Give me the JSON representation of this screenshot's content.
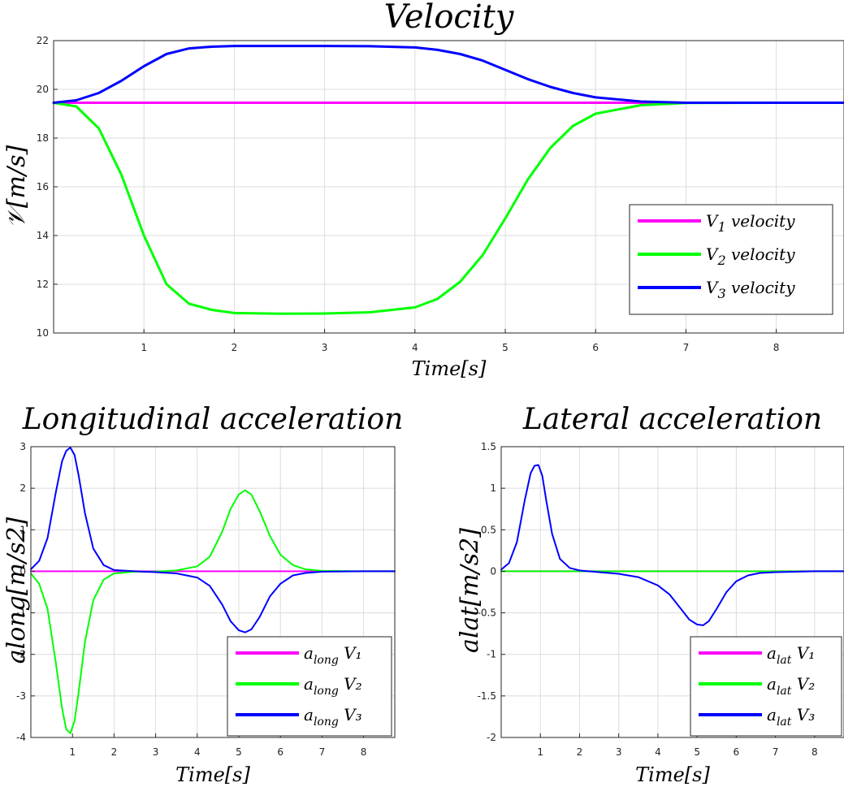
{
  "chart_data": [
    {
      "type": "line",
      "title": "Velocity",
      "xlabel": "Time[s]",
      "ylabel": "𝒱[m/s]",
      "xlim": [
        0,
        8.75
      ],
      "ylim": [
        10,
        22
      ],
      "xticks": [
        1,
        2,
        3,
        4,
        5,
        6,
        7,
        8
      ],
      "yticks": [
        10,
        12,
        14,
        16,
        18,
        20,
        22
      ],
      "grid": true,
      "legend_position": "center-right",
      "series": [
        {
          "name": "V1 velocity",
          "legend_main": "V",
          "legend_sub": "1",
          "legend_rest": " velocity",
          "color": "#ff00ff",
          "x": [
            0,
            1,
            2,
            3,
            4,
            5,
            6,
            7,
            8,
            8.75
          ],
          "y": [
            19.45,
            19.45,
            19.45,
            19.45,
            19.45,
            19.45,
            19.45,
            19.45,
            19.45,
            19.45
          ]
        },
        {
          "name": "V2 velocity",
          "legend_main": "V",
          "legend_sub": "2",
          "legend_rest": " velocity",
          "color": "#00ff00",
          "x": [
            0,
            0.25,
            0.5,
            0.75,
            1.0,
            1.25,
            1.5,
            1.75,
            2.0,
            2.5,
            3.0,
            3.5,
            4.0,
            4.25,
            4.5,
            4.75,
            5.0,
            5.25,
            5.5,
            5.75,
            6.0,
            6.5,
            7.0,
            8.0,
            8.75
          ],
          "y": [
            19.45,
            19.3,
            18.4,
            16.5,
            14.0,
            12.0,
            11.2,
            10.95,
            10.82,
            10.79,
            10.8,
            10.85,
            11.05,
            11.4,
            12.1,
            13.2,
            14.7,
            16.3,
            17.6,
            18.5,
            19.0,
            19.35,
            19.44,
            19.45,
            19.45
          ]
        },
        {
          "name": "V3 velocity",
          "legend_main": "V",
          "legend_sub": "3",
          "legend_rest": " velocity",
          "color": "#0000ff",
          "x": [
            0,
            0.25,
            0.5,
            0.75,
            1.0,
            1.25,
            1.5,
            1.75,
            2.0,
            2.5,
            3.0,
            3.5,
            4.0,
            4.25,
            4.5,
            4.75,
            5.0,
            5.25,
            5.5,
            5.75,
            6.0,
            6.5,
            7.0,
            8.0,
            8.75
          ],
          "y": [
            19.45,
            19.55,
            19.85,
            20.35,
            20.95,
            21.45,
            21.68,
            21.75,
            21.78,
            21.78,
            21.78,
            21.77,
            21.72,
            21.62,
            21.45,
            21.18,
            20.8,
            20.42,
            20.1,
            19.85,
            19.67,
            19.5,
            19.45,
            19.45,
            19.45
          ]
        }
      ]
    },
    {
      "type": "line",
      "title": "Longitudinal acceleration",
      "xlabel": "Time[s]",
      "ylabel": "along[m/s2]",
      "xlim": [
        0,
        8.75
      ],
      "ylim": [
        -4,
        3
      ],
      "xticks": [
        1,
        2,
        3,
        4,
        5,
        6,
        7,
        8
      ],
      "yticks": [
        -4,
        -3,
        -2,
        -1,
        0,
        1,
        2,
        3
      ],
      "grid": true,
      "legend_position": "bottom-right",
      "series": [
        {
          "name": "along V1",
          "legend_main": "a",
          "legend_sub": "long",
          "legend_rest": " V₁",
          "color": "#ff00ff",
          "x": [
            0,
            2,
            4,
            6,
            8.75
          ],
          "y": [
            0,
            0,
            0,
            0,
            0
          ]
        },
        {
          "name": "along V2",
          "legend_main": "a",
          "legend_sub": "long",
          "legend_rest": " V₂",
          "color": "#00ff00",
          "x": [
            0,
            0.2,
            0.4,
            0.6,
            0.75,
            0.85,
            0.95,
            1.05,
            1.15,
            1.3,
            1.5,
            1.75,
            2.0,
            2.5,
            3.0,
            3.5,
            4.0,
            4.3,
            4.6,
            4.8,
            5.0,
            5.15,
            5.3,
            5.5,
            5.75,
            6.0,
            6.3,
            6.6,
            7.0,
            8.0,
            8.75
          ],
          "y": [
            -0.05,
            -0.3,
            -0.9,
            -2.2,
            -3.3,
            -3.8,
            -3.9,
            -3.6,
            -2.9,
            -1.7,
            -0.7,
            -0.2,
            -0.05,
            -0.01,
            -0.01,
            0.02,
            0.12,
            0.35,
            0.95,
            1.5,
            1.85,
            1.95,
            1.85,
            1.45,
            0.85,
            0.4,
            0.15,
            0.05,
            0.01,
            0,
            0
          ]
        },
        {
          "name": "along V3",
          "legend_main": "a",
          "legend_sub": "long",
          "legend_rest": " V₃",
          "color": "#0000ff",
          "x": [
            0,
            0.2,
            0.4,
            0.6,
            0.75,
            0.85,
            0.95,
            1.05,
            1.15,
            1.3,
            1.5,
            1.75,
            2.0,
            2.5,
            3.0,
            3.5,
            4.0,
            4.3,
            4.6,
            4.8,
            5.0,
            5.15,
            5.3,
            5.5,
            5.75,
            6.0,
            6.3,
            6.6,
            7.0,
            8.0,
            8.75
          ],
          "y": [
            0.05,
            0.25,
            0.8,
            1.9,
            2.65,
            2.9,
            2.98,
            2.8,
            2.3,
            1.4,
            0.55,
            0.15,
            0.03,
            0.0,
            -0.02,
            -0.05,
            -0.15,
            -0.35,
            -0.8,
            -1.2,
            -1.42,
            -1.47,
            -1.4,
            -1.1,
            -0.6,
            -0.3,
            -0.1,
            -0.04,
            -0.01,
            0,
            0
          ]
        }
      ]
    },
    {
      "type": "line",
      "title": "Lateral acceleration",
      "xlabel": "Time[s]",
      "ylabel": "alat[m/s2]",
      "xlim": [
        0,
        8.75
      ],
      "ylim": [
        -2,
        1.5
      ],
      "xticks": [
        1,
        2,
        3,
        4,
        5,
        6,
        7,
        8
      ],
      "yticks": [
        -2,
        -1.5,
        -1,
        -0.5,
        0,
        0.5,
        1,
        1.5
      ],
      "grid": true,
      "legend_position": "bottom-right",
      "series": [
        {
          "name": "alat V1",
          "legend_main": "a",
          "legend_sub": "lat",
          "legend_rest": " V₁",
          "color": "#ff00ff",
          "x": [
            0,
            2,
            4,
            6,
            8.75
          ],
          "y": [
            0,
            0,
            0,
            0,
            0
          ]
        },
        {
          "name": "alat V2",
          "legend_main": "a",
          "legend_sub": "lat",
          "legend_rest": " V₂",
          "color": "#00ff00",
          "x": [
            0,
            2,
            4,
            6,
            8.75
          ],
          "y": [
            0,
            0,
            0,
            0,
            0
          ]
        },
        {
          "name": "alat V3",
          "legend_main": "a",
          "legend_sub": "lat",
          "legend_rest": " V₃",
          "color": "#0000ff",
          "x": [
            0,
            0.2,
            0.4,
            0.6,
            0.75,
            0.85,
            0.95,
            1.05,
            1.15,
            1.3,
            1.5,
            1.75,
            2.0,
            2.5,
            3.0,
            3.5,
            4.0,
            4.3,
            4.6,
            4.8,
            5.0,
            5.15,
            5.3,
            5.5,
            5.75,
            6.0,
            6.3,
            6.6,
            7.0,
            8.0,
            8.75
          ],
          "y": [
            0.02,
            0.1,
            0.35,
            0.85,
            1.18,
            1.27,
            1.28,
            1.15,
            0.85,
            0.45,
            0.15,
            0.04,
            0.01,
            -0.01,
            -0.03,
            -0.07,
            -0.17,
            -0.28,
            -0.46,
            -0.58,
            -0.64,
            -0.65,
            -0.6,
            -0.45,
            -0.25,
            -0.12,
            -0.05,
            -0.02,
            -0.01,
            0,
            0
          ]
        }
      ]
    }
  ]
}
